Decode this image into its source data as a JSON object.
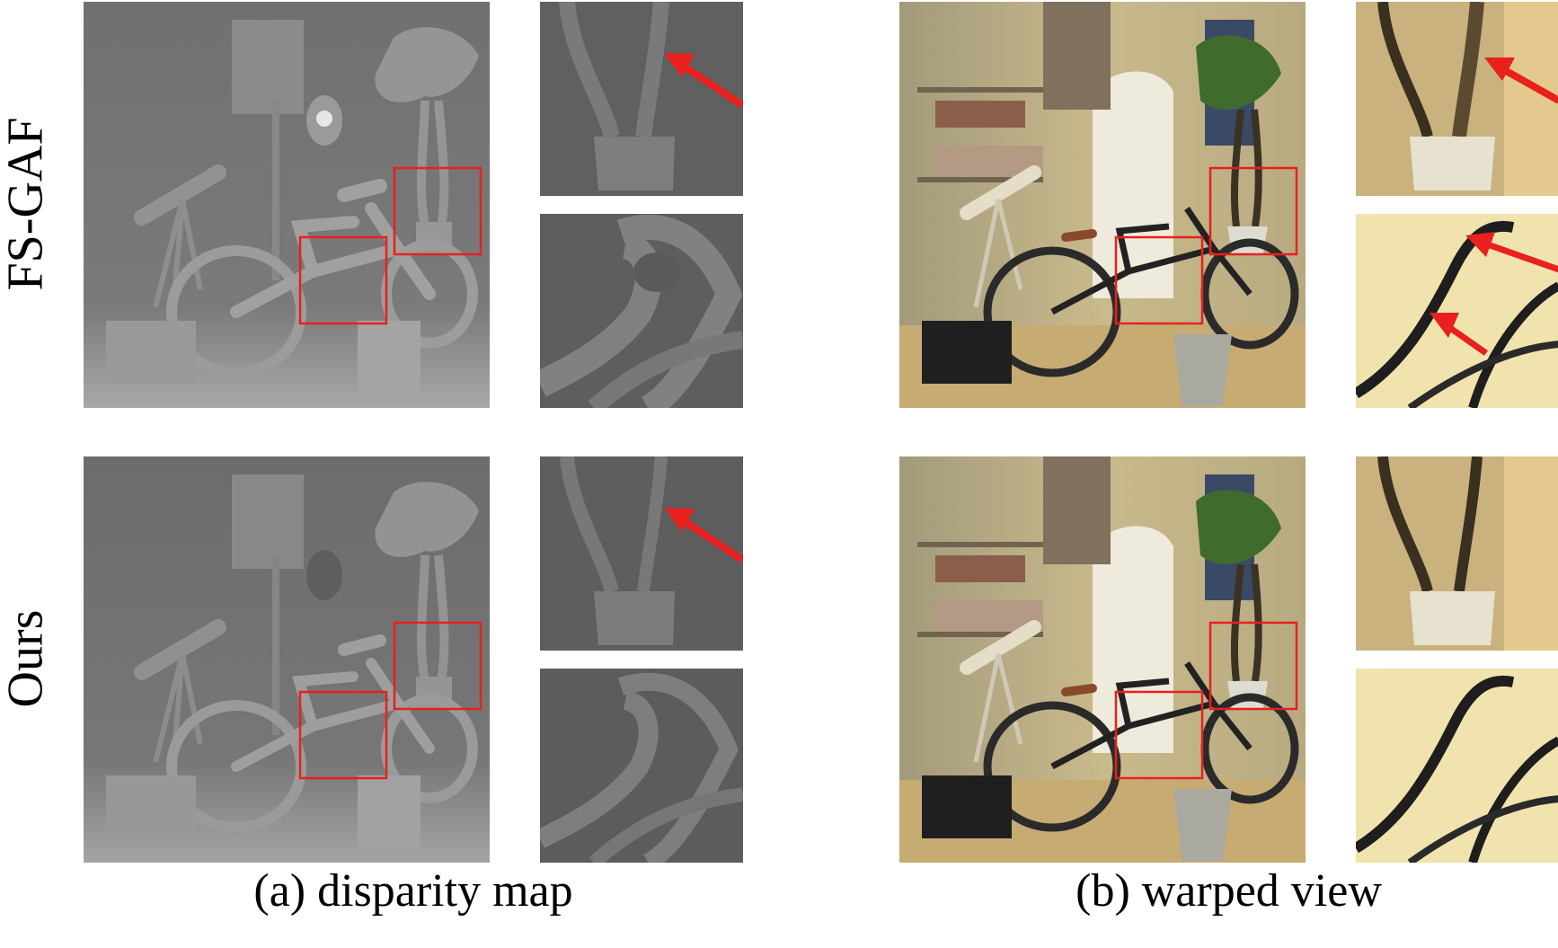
{
  "rows": [
    {
      "label": "FS-GAF"
    },
    {
      "label": "Ours"
    }
  ],
  "captions": {
    "a": "(a) disparity map",
    "b": "(b) warped view"
  },
  "colors": {
    "highlight_box": "#e8201e",
    "arrow": "#e8201e",
    "disparity_bg": "#6f6f6f",
    "warped_wall": "#c8b889"
  }
}
